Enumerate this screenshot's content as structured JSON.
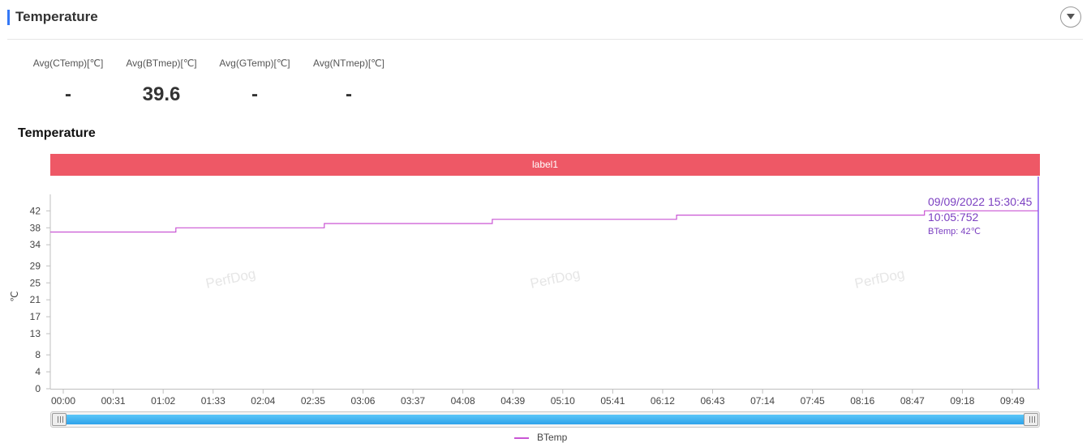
{
  "header": {
    "title": "Temperature",
    "collapse_icon": "chevron-down-icon"
  },
  "stats": [
    {
      "label": "Avg(CTemp)[℃]",
      "value": "-"
    },
    {
      "label": "Avg(BTmep)[℃]",
      "value": "39.6"
    },
    {
      "label": "Avg(GTemp)[℃]",
      "value": "-"
    },
    {
      "label": "Avg(NTmep)[℃]",
      "value": "-"
    }
  ],
  "watermark": "PerfDog",
  "chart_data": {
    "type": "line",
    "title": "Temperature",
    "label_band": {
      "text": "label1",
      "color": "#ee5866"
    },
    "ylabel": "℃",
    "y_ticks": [
      0,
      4,
      8,
      13,
      17,
      21,
      25,
      29,
      34,
      38,
      42
    ],
    "ylim": [
      0,
      46
    ],
    "x_ticks": [
      "00:00",
      "00:31",
      "01:02",
      "01:33",
      "02:04",
      "02:35",
      "03:06",
      "03:37",
      "04:08",
      "04:39",
      "05:10",
      "05:41",
      "06:12",
      "06:43",
      "07:14",
      "07:45",
      "08:16",
      "08:47",
      "09:18",
      "09:49"
    ],
    "x_range_seconds": [
      0,
      605.752
    ],
    "series": [
      {
        "name": "BTemp",
        "color": "#c955d4",
        "points": [
          {
            "x": 0,
            "y": 37
          },
          {
            "x": 77,
            "y": 37
          },
          {
            "x": 77,
            "y": 38
          },
          {
            "x": 168,
            "y": 38
          },
          {
            "x": 168,
            "y": 39
          },
          {
            "x": 271,
            "y": 39
          },
          {
            "x": 271,
            "y": 40
          },
          {
            "x": 384,
            "y": 40
          },
          {
            "x": 384,
            "y": 41
          },
          {
            "x": 536,
            "y": 41
          },
          {
            "x": 536,
            "y": 42
          },
          {
            "x": 605.752,
            "y": 42
          }
        ]
      }
    ],
    "tooltip": {
      "date": "09/09/2022 15:30:45",
      "elapsed": "10:05:752",
      "value": "BTemp: 42℃",
      "color": "#7b3fc1"
    },
    "grid": false,
    "legend_position": "bottom-center"
  }
}
